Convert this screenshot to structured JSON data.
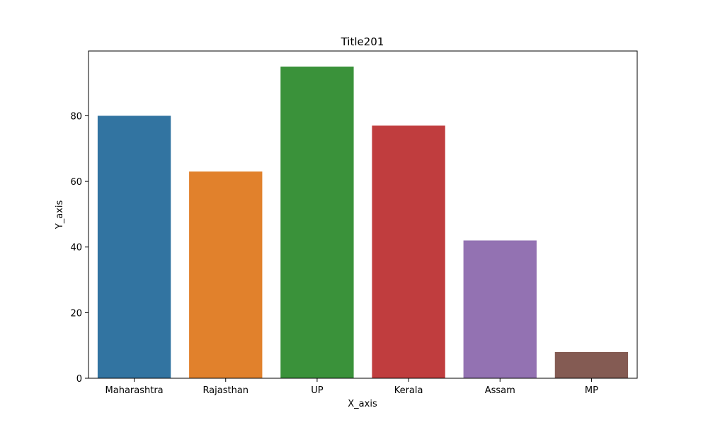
{
  "chart_data": {
    "type": "bar",
    "title": "Title201",
    "xlabel": "X_axis",
    "ylabel": "Y_axis",
    "categories": [
      "Maharashtra",
      "Rajasthan",
      "UP",
      "Kerala",
      "Assam",
      "MP"
    ],
    "values": [
      80,
      63,
      95,
      77,
      42,
      8
    ],
    "colors": [
      "#3274a1",
      "#e1812c",
      "#3a923a",
      "#c03d3e",
      "#9372b2",
      "#845b53"
    ],
    "ylim": [
      0,
      99.75
    ],
    "yticks": [
      0,
      20,
      40,
      60,
      80
    ],
    "grid": false,
    "legend": "none"
  }
}
